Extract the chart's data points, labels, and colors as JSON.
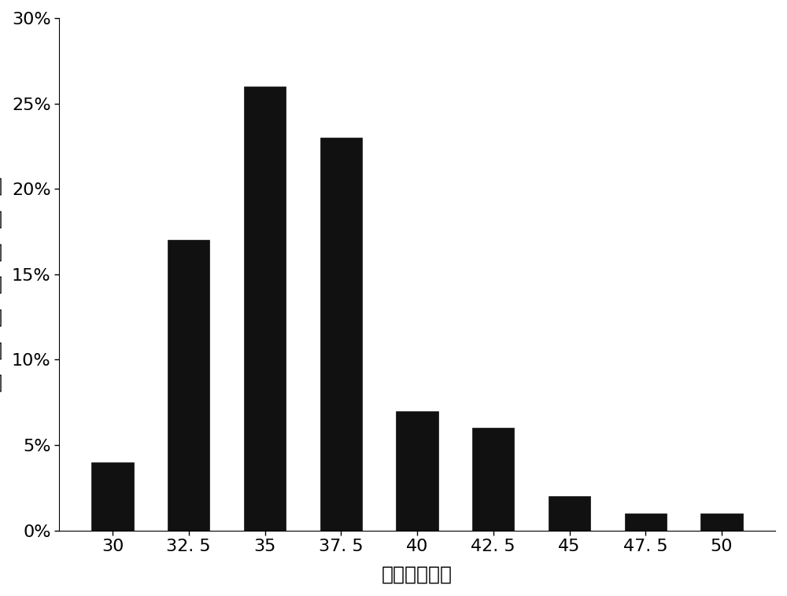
{
  "categories": [
    "30",
    "32. 5",
    "35",
    "37. 5",
    "40",
    "42. 5",
    "45",
    "47. 5",
    "50"
  ],
  "values": [
    0.04,
    0.17,
    0.26,
    0.23,
    0.07,
    0.06,
    0.02,
    0.01,
    0.01
  ],
  "bar_color": "#111111",
  "bar_edge_color": "#111111",
  "xlabel": "粒径（微米）",
  "ylabel_chars": [
    "粒",
    "径",
    "所",
    "含",
    "百",
    "分",
    "数"
  ],
  "ylim": [
    0,
    0.3
  ],
  "yticks": [
    0.0,
    0.05,
    0.1,
    0.15,
    0.2,
    0.25,
    0.3
  ],
  "ytick_labels": [
    "0%",
    "5%",
    "10%",
    "15%",
    "20%",
    "25%",
    "30%"
  ],
  "background_color": "#ffffff",
  "xlabel_fontsize": 18,
  "ylabel_fontsize": 18,
  "tick_fontsize": 16,
  "bar_width": 0.55,
  "figsize": [
    10.0,
    7.58
  ],
  "dpi": 100
}
